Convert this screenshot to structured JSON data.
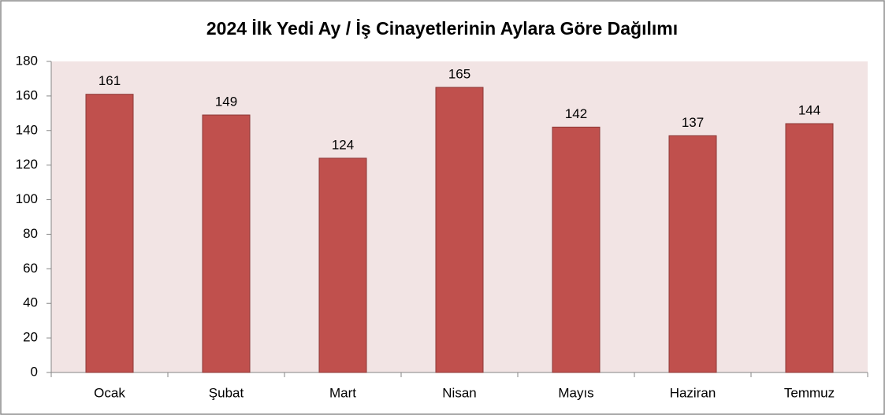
{
  "chart_data": {
    "type": "bar",
    "title": "2024 İlk Yedi Ay / İş Cinayetlerinin Aylara Göre Dağılımı",
    "categories": [
      "Ocak",
      "Şubat",
      "Mart",
      "Nisan",
      "Mayıs",
      "Haziran",
      "Temmuz"
    ],
    "values": [
      161,
      149,
      124,
      165,
      142,
      137,
      144
    ],
    "color": "#c0504d",
    "ylim": [
      0,
      180
    ],
    "yticks": [
      0,
      20,
      40,
      60,
      80,
      100,
      120,
      140,
      160,
      180
    ],
    "grid": false
  }
}
